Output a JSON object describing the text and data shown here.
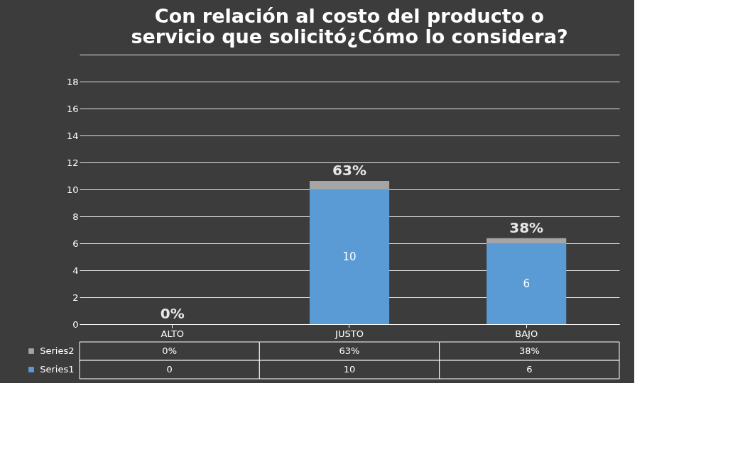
{
  "chart_data": {
    "type": "bar",
    "title": "Con relación al costo del producto o servicio que solicitó¿Cómo lo considera?",
    "categories": [
      "ALTO",
      "JUSTO",
      "BAJO"
    ],
    "stacked": true,
    "series": [
      {
        "name": "Series1",
        "color": "#5b9bd5",
        "values": [
          0,
          10,
          6
        ],
        "value_labels": [
          "0",
          "10",
          "6"
        ]
      },
      {
        "name": "Series2",
        "color": "#a5a5a5",
        "values": [
          0,
          0.63,
          0.38
        ],
        "value_labels": [
          "0%",
          "63%",
          "38%"
        ]
      }
    ],
    "ylim": [
      0,
      20
    ],
    "yticks": [
      0,
      2,
      4,
      6,
      8,
      10,
      12,
      14,
      16,
      18,
      {
        "value": 20,
        "label": null
      }
    ],
    "grid": "y",
    "legend": "bottom left"
  }
}
